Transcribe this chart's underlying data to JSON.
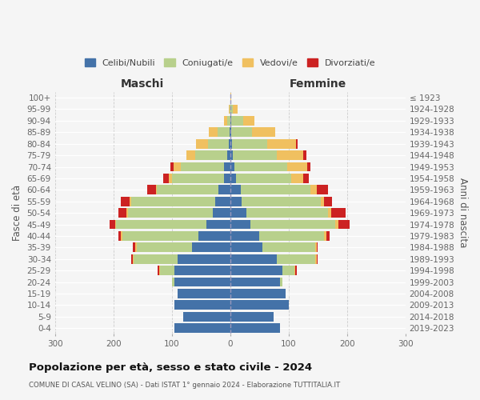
{
  "age_groups": [
    "0-4",
    "5-9",
    "10-14",
    "15-19",
    "20-24",
    "25-29",
    "30-34",
    "35-39",
    "40-44",
    "45-49",
    "50-54",
    "55-59",
    "60-64",
    "65-69",
    "70-74",
    "75-79",
    "80-84",
    "85-89",
    "90-94",
    "95-99",
    "100+"
  ],
  "birth_years": [
    "2019-2023",
    "2014-2018",
    "2009-2013",
    "2004-2008",
    "1999-2003",
    "1994-1998",
    "1989-1993",
    "1984-1988",
    "1979-1983",
    "1974-1978",
    "1969-1973",
    "1964-1968",
    "1959-1963",
    "1954-1958",
    "1949-1953",
    "1944-1948",
    "1939-1943",
    "1934-1938",
    "1929-1933",
    "1924-1928",
    "≤ 1923"
  ],
  "colors": {
    "celibi": "#4472a8",
    "coniugati": "#b8d08c",
    "vedovi": "#f0c060",
    "divorziati": "#cc2222"
  },
  "maschi": {
    "celibi": [
      95,
      80,
      95,
      90,
      95,
      95,
      90,
      65,
      55,
      40,
      30,
      25,
      20,
      10,
      10,
      5,
      3,
      1,
      0,
      0,
      0
    ],
    "coniugati": [
      0,
      0,
      0,
      0,
      5,
      25,
      75,
      95,
      130,
      155,
      145,
      145,
      105,
      90,
      75,
      55,
      35,
      20,
      5,
      1,
      0
    ],
    "vedovi": [
      0,
      0,
      0,
      0,
      0,
      2,
      2,
      2,
      2,
      2,
      2,
      2,
      2,
      5,
      12,
      15,
      20,
      15,
      5,
      1,
      0
    ],
    "divorziati": [
      0,
      0,
      0,
      0,
      0,
      2,
      2,
      5,
      5,
      10,
      15,
      15,
      15,
      10,
      5,
      0,
      0,
      0,
      0,
      0,
      0
    ]
  },
  "femmine": {
    "nubili": [
      85,
      75,
      100,
      95,
      85,
      90,
      80,
      55,
      50,
      35,
      28,
      20,
      18,
      10,
      7,
      5,
      3,
      2,
      2,
      0,
      0
    ],
    "coniugate": [
      0,
      0,
      0,
      0,
      5,
      20,
      65,
      90,
      110,
      145,
      140,
      135,
      120,
      95,
      90,
      75,
      60,
      35,
      20,
      5,
      1
    ],
    "vedove": [
      0,
      0,
      0,
      0,
      0,
      2,
      3,
      3,
      5,
      5,
      5,
      5,
      10,
      20,
      35,
      45,
      50,
      40,
      20,
      8,
      1
    ],
    "divorziate": [
      0,
      0,
      0,
      0,
      0,
      2,
      2,
      2,
      5,
      20,
      25,
      15,
      20,
      10,
      5,
      5,
      2,
      0,
      0,
      0,
      0
    ]
  },
  "xlim": 300,
  "title": "Popolazione per età, sesso e stato civile - 2024",
  "subtitle": "COMUNE DI CASAL VELINO (SA) - Dati ISTAT 1° gennaio 2024 - Elaborazione TUTTITALIA.IT",
  "ylabel_left": "Fasce di età",
  "ylabel_right": "Anni di nascita",
  "xlabel_left": "Maschi",
  "xlabel_right": "Femmine",
  "legend_labels": [
    "Celibi/Nubili",
    "Coniugati/e",
    "Vedovi/e",
    "Divorziati/e"
  ],
  "background_color": "#f5f5f5",
  "grid_color": "#cccccc"
}
